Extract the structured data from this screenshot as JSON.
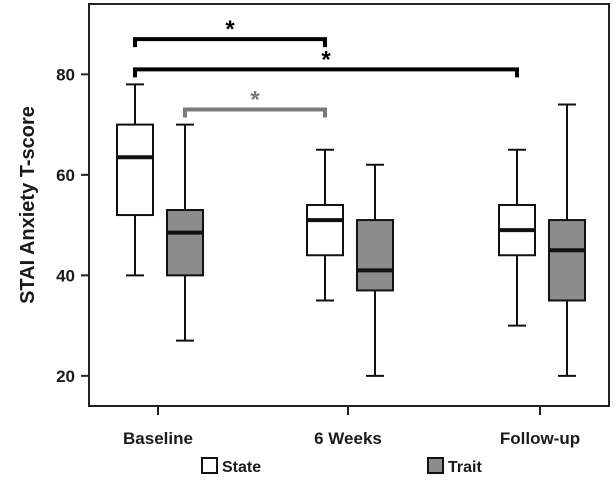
{
  "chart_data": {
    "type": "boxplot",
    "ylabel": "STAI Anxiety T-score",
    "ylim": [
      14,
      94
    ],
    "yticks": [
      20,
      40,
      60,
      80
    ],
    "categories": [
      "Baseline",
      "6 Weeks",
      "Follow-up"
    ],
    "grid": false,
    "legend_position": "bottom",
    "series": [
      {
        "name": "State",
        "color": "#ffffff",
        "boxes": [
          {
            "min": 40,
            "q1": 52,
            "median": 63.5,
            "q3": 70,
            "max": 78
          },
          {
            "min": 35,
            "q1": 44,
            "median": 51,
            "q3": 54,
            "max": 65
          },
          {
            "min": 30,
            "q1": 44,
            "median": 49,
            "q3": 54,
            "max": 65
          }
        ]
      },
      {
        "name": "Trait",
        "color": "#8c8c8c",
        "boxes": [
          {
            "min": 27,
            "q1": 40,
            "median": 48.5,
            "q3": 53,
            "max": 70
          },
          {
            "min": 20,
            "q1": 37,
            "median": 41,
            "q3": 51,
            "max": 62
          },
          {
            "min": 20,
            "q1": 35,
            "median": 45,
            "q3": 51,
            "max": 74
          }
        ]
      }
    ],
    "significance": [
      {
        "from_category": 0,
        "from_series": 0,
        "to_category": 1,
        "to_series": 0,
        "y": 87,
        "label": "*",
        "color": "#000000"
      },
      {
        "from_category": 0,
        "from_series": 0,
        "to_category": 2,
        "to_series": 0,
        "y": 81,
        "label": "*",
        "color": "#000000"
      },
      {
        "from_category": 0,
        "from_series": 1,
        "to_category": 1,
        "to_series": 0,
        "y": 73,
        "label": "*",
        "color": "#7a7a7a"
      }
    ]
  }
}
